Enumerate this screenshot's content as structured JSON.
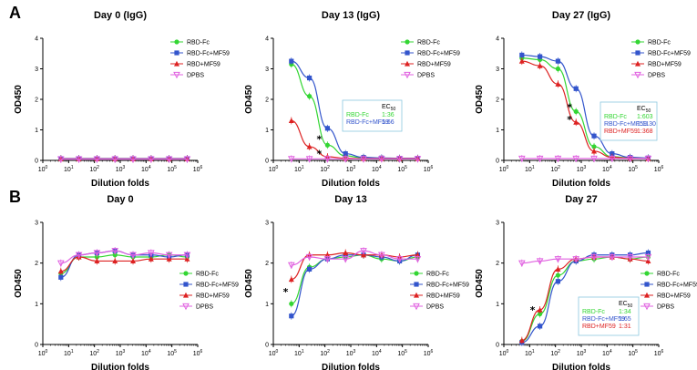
{
  "colors": {
    "RBD-Fc": "#33d633",
    "RBD-Fc+MF59": "#3355cc",
    "RBD+MF59": "#dd2222",
    "DPBS": "#e060e0",
    "ec_box": "#8cc8e0"
  },
  "chart_data": [
    {
      "panel": "A",
      "title": "Day 0 (IgG)",
      "type": "line",
      "xlabel": "Dilution folds",
      "ylabel": "OD450",
      "xscale": "log10",
      "xlim": [
        1,
        1000000
      ],
      "ylim": [
        0,
        4
      ],
      "yticks": [
        0,
        1,
        2,
        3,
        4
      ],
      "legend_position": "top-right",
      "x": [
        5,
        25,
        125,
        625,
        3125,
        15625,
        78125,
        390625
      ],
      "series": [
        {
          "name": "RBD-Fc",
          "marker": "circle",
          "values": [
            0.05,
            0.05,
            0.05,
            0.05,
            0.05,
            0.05,
            0.05,
            0.05
          ]
        },
        {
          "name": "RBD-Fc+MF59",
          "marker": "square",
          "values": [
            0.06,
            0.06,
            0.06,
            0.06,
            0.06,
            0.06,
            0.06,
            0.06
          ]
        },
        {
          "name": "RBD+MF59",
          "marker": "triangle",
          "values": [
            0.05,
            0.05,
            0.05,
            0.05,
            0.05,
            0.05,
            0.05,
            0.05
          ]
        },
        {
          "name": "DPBS",
          "marker": "triangle-down",
          "values": [
            0.04,
            0.04,
            0.04,
            0.04,
            0.04,
            0.04,
            0.04,
            0.04
          ]
        }
      ]
    },
    {
      "panel": "",
      "title": "Day 13 (IgG)",
      "type": "line",
      "xlabel": "Dilution folds",
      "ylabel": "OD450",
      "xscale": "log10",
      "xlim": [
        1,
        1000000
      ],
      "ylim": [
        0,
        4
      ],
      "yticks": [
        0,
        1,
        2,
        3,
        4
      ],
      "legend_position": "top-right",
      "x": [
        5,
        25,
        125,
        625,
        3125,
        15625,
        78125,
        390625
      ],
      "series": [
        {
          "name": "RBD-Fc",
          "marker": "circle",
          "values": [
            3.15,
            2.1,
            0.5,
            0.15,
            0.08,
            0.06,
            0.06,
            0.06
          ]
        },
        {
          "name": "RBD-Fc+MF59",
          "marker": "square",
          "values": [
            3.25,
            2.7,
            1.05,
            0.22,
            0.1,
            0.08,
            0.07,
            0.07
          ]
        },
        {
          "name": "RBD+MF59",
          "marker": "triangle",
          "values": [
            1.3,
            0.45,
            0.12,
            0.07,
            0.06,
            0.06,
            0.06,
            0.06
          ]
        },
        {
          "name": "DPBS",
          "marker": "triangle-down",
          "values": [
            0.05,
            0.05,
            0.05,
            0.05,
            0.05,
            0.05,
            0.05,
            0.05
          ]
        }
      ],
      "ec50": {
        "header": "EC",
        "sub": "50",
        "rows": [
          {
            "name": "RBD-Fc",
            "value": "1:36"
          },
          {
            "name": "RBD-Fc+MF59",
            "value": "1:66"
          }
        ]
      },
      "annotations": [
        {
          "text": "*",
          "x": 60,
          "y": 0.7
        },
        {
          "text": "*",
          "x": 60,
          "y": 0.22
        }
      ]
    },
    {
      "panel": "",
      "title": "Day 27 (IgG)",
      "type": "line",
      "xlabel": "Dilution folds",
      "ylabel": "OD450",
      "xscale": "log10",
      "xlim": [
        1,
        1000000
      ],
      "ylim": [
        0,
        4
      ],
      "yticks": [
        0,
        1,
        2,
        3,
        4
      ],
      "legend_position": "top-right",
      "x": [
        5,
        25,
        125,
        625,
        3125,
        15625,
        78125,
        390625
      ],
      "series": [
        {
          "name": "RBD-Fc",
          "marker": "circle",
          "values": [
            3.35,
            3.3,
            3.0,
            1.6,
            0.45,
            0.12,
            0.08,
            0.07
          ]
        },
        {
          "name": "RBD-Fc+MF59",
          "marker": "square",
          "values": [
            3.45,
            3.4,
            3.25,
            2.35,
            0.8,
            0.22,
            0.1,
            0.08
          ]
        },
        {
          "name": "RBD+MF59",
          "marker": "triangle",
          "values": [
            3.25,
            3.1,
            2.5,
            1.25,
            0.3,
            0.1,
            0.07,
            0.06
          ]
        },
        {
          "name": "DPBS",
          "marker": "triangle-down",
          "values": [
            0.06,
            0.06,
            0.06,
            0.06,
            0.06,
            0.06,
            0.06,
            0.06
          ]
        }
      ],
      "ec50": {
        "header": "EC",
        "sub": "50",
        "rows": [
          {
            "name": "RBD-Fc",
            "value": "1:603"
          },
          {
            "name": "RBD-Fc+MF59",
            "value": "1:1130"
          },
          {
            "name": "RBD+MF59",
            "value": "1:368"
          }
        ]
      },
      "annotations": [
        {
          "text": "*",
          "x": 350,
          "y": 1.75
        },
        {
          "text": "*",
          "x": 350,
          "y": 1.35
        }
      ]
    },
    {
      "panel": "B",
      "title": "Day 0",
      "type": "line",
      "xlabel": "Dilution folds",
      "ylabel": "OD450",
      "xscale": "log10",
      "xlim": [
        1,
        1000000
      ],
      "ylim": [
        0,
        3
      ],
      "yticks": [
        0,
        1,
        2,
        3
      ],
      "legend_position": "right",
      "x": [
        5,
        25,
        125,
        625,
        3125,
        15625,
        78125,
        390625
      ],
      "series": [
        {
          "name": "RBD-Fc",
          "marker": "circle",
          "values": [
            1.75,
            2.15,
            2.15,
            2.2,
            2.15,
            2.15,
            2.2,
            2.15
          ]
        },
        {
          "name": "RBD-Fc+MF59",
          "marker": "square",
          "values": [
            1.65,
            2.2,
            2.25,
            2.3,
            2.2,
            2.2,
            2.15,
            2.2
          ]
        },
        {
          "name": "RBD+MF59",
          "marker": "triangle",
          "values": [
            1.8,
            2.15,
            2.05,
            2.05,
            2.05,
            2.1,
            2.1,
            2.1
          ]
        },
        {
          "name": "DPBS",
          "marker": "triangle-down",
          "values": [
            2.0,
            2.2,
            2.25,
            2.3,
            2.2,
            2.25,
            2.2,
            2.2
          ]
        }
      ]
    },
    {
      "panel": "",
      "title": "Day 13",
      "type": "line",
      "xlabel": "Dilution folds",
      "ylabel": "OD450",
      "xscale": "log10",
      "xlim": [
        1,
        1000000
      ],
      "ylim": [
        0,
        3
      ],
      "yticks": [
        0,
        1,
        2,
        3
      ],
      "legend_position": "right",
      "x": [
        5,
        25,
        125,
        625,
        3125,
        15625,
        78125,
        390625
      ],
      "series": [
        {
          "name": "RBD-Fc",
          "marker": "circle",
          "values": [
            1.0,
            1.9,
            2.1,
            2.15,
            2.2,
            2.1,
            2.05,
            2.15
          ]
        },
        {
          "name": "RBD-Fc+MF59",
          "marker": "square",
          "values": [
            0.7,
            1.85,
            2.1,
            2.2,
            2.2,
            2.15,
            2.05,
            2.2
          ]
        },
        {
          "name": "RBD+MF59",
          "marker": "triangle",
          "values": [
            1.6,
            2.2,
            2.2,
            2.25,
            2.2,
            2.2,
            2.15,
            2.2
          ]
        },
        {
          "name": "DPBS",
          "marker": "triangle-down",
          "values": [
            1.95,
            2.15,
            2.1,
            2.1,
            2.3,
            2.2,
            2.1,
            2.1
          ]
        }
      ],
      "annotations": [
        {
          "text": "*",
          "x": 3,
          "y": 1.3
        }
      ]
    },
    {
      "panel": "",
      "title": "Day 27",
      "type": "line",
      "xlabel": "Dilution folds",
      "ylabel": "OD450",
      "xscale": "log10",
      "xlim": [
        1,
        1000000
      ],
      "ylim": [
        0,
        3
      ],
      "yticks": [
        0,
        1,
        2,
        3
      ],
      "legend_position": "right",
      "x": [
        5,
        25,
        125,
        625,
        3125,
        15625,
        78125,
        390625
      ],
      "series": [
        {
          "name": "RBD-Fc",
          "marker": "circle",
          "values": [
            0.08,
            0.75,
            1.7,
            2.05,
            2.1,
            2.15,
            2.1,
            2.15
          ]
        },
        {
          "name": "RBD-Fc+MF59",
          "marker": "square",
          "values": [
            0.05,
            0.45,
            1.55,
            2.05,
            2.2,
            2.2,
            2.2,
            2.25
          ]
        },
        {
          "name": "RBD+MF59",
          "marker": "triangle",
          "values": [
            0.1,
            0.85,
            1.85,
            2.1,
            2.15,
            2.15,
            2.1,
            2.05
          ]
        },
        {
          "name": "DPBS",
          "marker": "triangle-down",
          "values": [
            2.0,
            2.05,
            2.1,
            2.1,
            2.15,
            2.15,
            2.15,
            2.15
          ]
        }
      ],
      "ec50": {
        "header": "EC",
        "sub": "50",
        "rows": [
          {
            "name": "RBD-Fc",
            "value": "1:34"
          },
          {
            "name": "RBD-Fc+MF59",
            "value": "1:65"
          },
          {
            "name": "RBD+MF59",
            "value": "1:31"
          }
        ]
      },
      "annotations": [
        {
          "text": "*",
          "x": 13,
          "y": 0.85
        }
      ]
    }
  ]
}
